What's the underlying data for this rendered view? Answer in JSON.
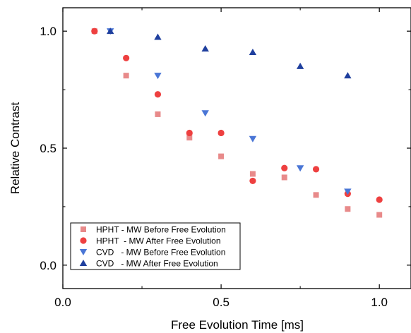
{
  "chart_data": {
    "type": "scatter",
    "xlabel": "Free Evolution Time [ms]",
    "ylabel": "Relative Contrast",
    "xlim": [
      0.0,
      1.1
    ],
    "ylim": [
      -0.1,
      1.1
    ],
    "x_ticks": [
      {
        "value": 0.0,
        "label": "0.0"
      },
      {
        "value": 0.5,
        "label": "0.5"
      },
      {
        "value": 1.0,
        "label": "1.0"
      }
    ],
    "y_ticks": [
      {
        "value": 0.0,
        "label": "0.0"
      },
      {
        "value": 0.5,
        "label": "0.5"
      },
      {
        "value": 1.0,
        "label": "1.0"
      }
    ],
    "grid": false,
    "legend_position": "bottom-left",
    "series": [
      {
        "name": "HPHT - MW Before Free Evolution",
        "marker": "square",
        "color": "#e88a8a",
        "x": [
          0.1,
          0.2,
          0.3,
          0.4,
          0.5,
          0.6,
          0.7,
          0.8,
          0.9,
          1.0
        ],
        "y": [
          1.0,
          0.81,
          0.645,
          0.545,
          0.465,
          0.39,
          0.375,
          0.3,
          0.24,
          0.215
        ]
      },
      {
        "name": "HPHT  - MW After Free Evolution",
        "marker": "circle",
        "color": "#ee4040",
        "x": [
          0.1,
          0.2,
          0.3,
          0.4,
          0.5,
          0.6,
          0.7,
          0.8,
          0.9,
          1.0
        ],
        "y": [
          1.0,
          0.885,
          0.73,
          0.565,
          0.565,
          0.36,
          0.415,
          0.41,
          0.305,
          0.28
        ]
      },
      {
        "name": "CVD   - MW Before Free Evolution",
        "marker": "triangle-down",
        "color": "#4a76d6",
        "x": [
          0.15,
          0.3,
          0.45,
          0.6,
          0.75,
          0.9
        ],
        "y": [
          1.0,
          0.81,
          0.65,
          0.54,
          0.415,
          0.315
        ]
      },
      {
        "name": "CVD   - MW After Free Evolution",
        "marker": "triangle-up",
        "color": "#1f3f9e",
        "x": [
          0.15,
          0.3,
          0.45,
          0.6,
          0.75,
          0.9
        ],
        "y": [
          1.0,
          0.975,
          0.925,
          0.91,
          0.85,
          0.81
        ]
      }
    ]
  }
}
